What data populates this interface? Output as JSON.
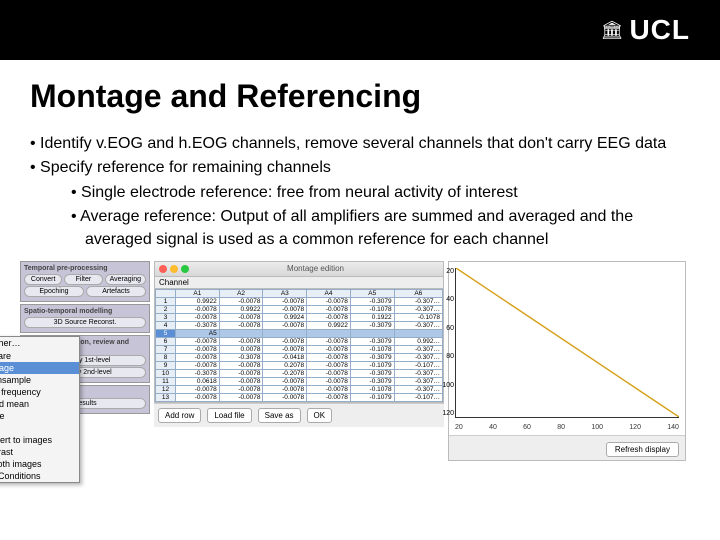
{
  "header": {
    "logo_text": "UCL"
  },
  "title": "Montage and Referencing",
  "bullets": [
    {
      "level": 1,
      "text": "Identify v.EOG and h.EOG channels, remove several channels that don't carry EEG data"
    },
    {
      "level": 1,
      "text": "Specify reference for remaining channels"
    },
    {
      "level": 2,
      "text": "Single electrode reference: free from neural activity of interest"
    },
    {
      "level": 2,
      "text": "Average reference: Output of all amplifiers are summed and averaged and the averaged signal is used as a common reference for each channel"
    }
  ],
  "left_panel": {
    "sections": [
      {
        "head": "Temporal pre-processing",
        "rows": [
          [
            "Convert",
            "Filter",
            "Averaging"
          ],
          [
            "Epoching",
            "Artefacts",
            ""
          ]
        ]
      },
      {
        "head": "Spatio-temporal modelling",
        "rows": [
          [
            "3D Source Reconst.",
            "",
            ""
          ]
        ]
      },
      {
        "head": "Model specification, review and estimation",
        "rows": [
          [
            "Specify 1st-level",
            "",
            ""
          ],
          [
            "Specify 2nd-level",
            "",
            ""
          ]
        ]
      },
      {
        "head": "Inference",
        "rows": [
          [
            "Results",
            "",
            ""
          ]
        ]
      }
    ]
  },
  "context_menu": {
    "items": [
      {
        "label": "Other…",
        "checked": true,
        "selected": false
      },
      {
        "label": "Prepare",
        "checked": false,
        "selected": false
      },
      {
        "label": "Montage",
        "checked": false,
        "selected": true
      },
      {
        "label": "Downsample",
        "checked": false,
        "selected": false
      },
      {
        "label": "Time frequency",
        "checked": false,
        "selected": false
      },
      {
        "label": "Grand mean",
        "checked": false,
        "selected": false
      },
      {
        "label": "Merge",
        "checked": false,
        "selected": false
      },
      {
        "label": "Copy",
        "checked": false,
        "selected": false
      },
      {
        "label": "Convert to images",
        "checked": false,
        "selected": false
      },
      {
        "label": "Contrast",
        "checked": false,
        "selected": false
      },
      {
        "label": "Smooth images",
        "checked": false,
        "selected": false
      },
      {
        "label": "Sort Conditions",
        "checked": false,
        "selected": false
      }
    ]
  },
  "table_panel": {
    "win_title": "Montage edition",
    "channel_label": "Channel",
    "columns": [
      "",
      "A1",
      "A2",
      "A3",
      "A4",
      "A5",
      "A6"
    ],
    "selected_row_index": 4,
    "rows": [
      [
        "1",
        "0.9922",
        "-0.0078",
        "-0.0078",
        "-0.0078",
        "-0.3079",
        "-0.307…"
      ],
      [
        "2",
        "-0.0078",
        "0.9922",
        "-0.0078",
        "-0.0078",
        "-0.1078",
        "-0.307…"
      ],
      [
        "3",
        "-0.0078",
        "-0.0078",
        "0.9924",
        "-0.0078",
        "0.1922",
        "-0.1078"
      ],
      [
        "4",
        "-0.3078",
        "-0.0078",
        "-0.0078",
        "0.9922",
        "-0.3079",
        "-0.307…"
      ],
      [
        "5",
        "A5",
        "",
        "",
        "",
        "",
        ""
      ],
      [
        "6",
        "-0.0078",
        "-0.0078",
        "-0.0078",
        "-0.0078",
        "-0.3079",
        "0.992…"
      ],
      [
        "7",
        "-0.0078",
        "0.0078",
        "-0.0078",
        "-0.0078",
        "-0.1078",
        "-0.307…"
      ],
      [
        "8",
        "-0.0078",
        "-0.3078",
        "-0.0418",
        "-0.0078",
        "-0.3079",
        "-0.307…"
      ],
      [
        "9",
        "-0.0078",
        "-0.0078",
        "0.2078",
        "-0.0078",
        "-0.1079",
        "-0.107…"
      ],
      [
        "10",
        "-0.3078",
        "-0.0078",
        "-0.2078",
        "-0.0078",
        "-0.3079",
        "-0.307…"
      ],
      [
        "11",
        "0.0618",
        "-0.0078",
        "-0.0078",
        "-0.0078",
        "-0.3079",
        "-0.307…"
      ],
      [
        "12",
        "-0.0078",
        "-0.0078",
        "-0.0078",
        "-0.0078",
        "-0.1078",
        "-0.307…"
      ],
      [
        "13",
        "-0.0078",
        "-0.0078",
        "-0.0078",
        "-0.0078",
        "-0.1079",
        "-0.107…"
      ]
    ],
    "buttons": [
      "Add row",
      "Load file",
      "Save as",
      "OK"
    ]
  },
  "chart": {
    "y_ticks": [
      "20",
      "40",
      "60",
      "80",
      "100",
      "120"
    ],
    "x_ticks": [
      "20",
      "40",
      "60",
      "80",
      "100",
      "120",
      "140"
    ],
    "button": "Refresh display",
    "line_color": "#d4a017",
    "bg": "#ffffff"
  }
}
